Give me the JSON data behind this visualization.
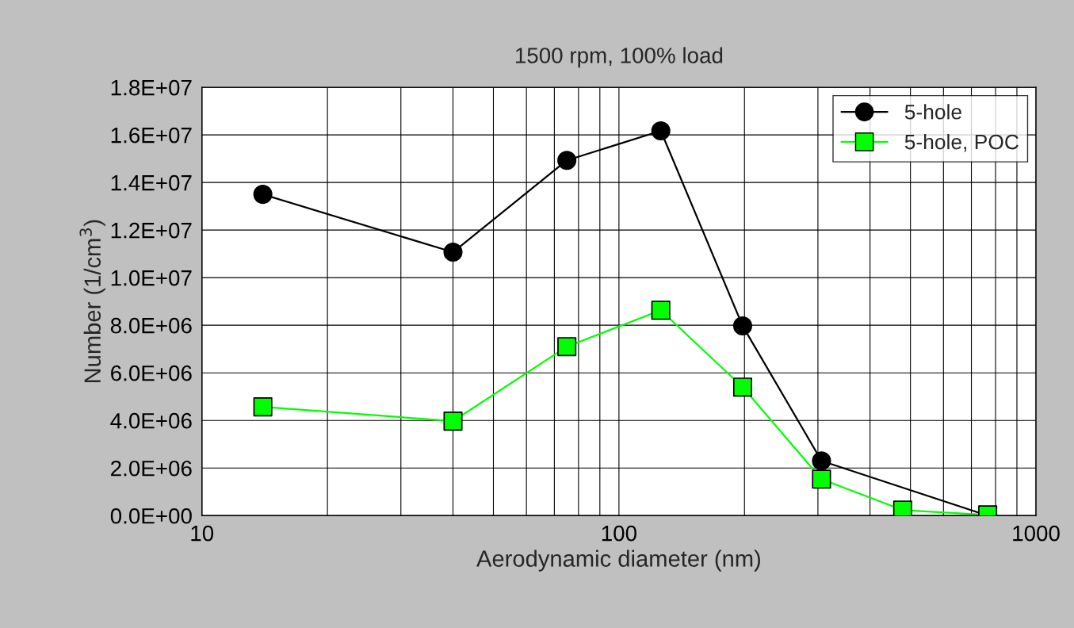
{
  "chart_data": {
    "type": "line",
    "title": "1500 rpm, 100% load",
    "xlabel": "Aerodynamic diameter (nm)",
    "ylabel": "Number (1/cm$^{3}$)",
    "log": "x",
    "xlim": [
      10,
      1000
    ],
    "xticks": [
      10,
      100,
      1000
    ],
    "ylim": [
      0,
      18000000
    ],
    "yticks": [
      {
        "value": 0,
        "label": "0.0E+00"
      },
      {
        "value": 2000000,
        "label": "2.0E+06"
      },
      {
        "value": 4000000,
        "label": "4.0E+06"
      },
      {
        "value": 6000000,
        "label": "6.0E+06"
      },
      {
        "value": 8000000,
        "label": "8.0E+06"
      },
      {
        "value": 10000000,
        "label": "1.0E+07"
      },
      {
        "value": 12000000,
        "label": "1.2E+07"
      },
      {
        "value": 14000000,
        "label": "1.4E+07"
      },
      {
        "value": 16000000,
        "label": "1.6E+07"
      },
      {
        "value": 18000000,
        "label": "1.8E+07"
      }
    ],
    "grid": true,
    "legend": "top right",
    "line_style": "solid",
    "series": [
      {
        "name": "5-hole",
        "color": "#000000",
        "marker": "circle",
        "x": [
          14,
          40,
          75,
          126,
          198,
          306,
          766
        ],
        "values": [
          13500000,
          11070000,
          14930000,
          16170000,
          7970000,
          2300000,
          0
        ]
      },
      {
        "name": "5-hole, POC",
        "color": "#00ff00",
        "marker": "square",
        "x": [
          14,
          40,
          75,
          126,
          198,
          306,
          479,
          766
        ],
        "values": [
          4570000,
          3970000,
          7100000,
          8630000,
          5400000,
          1530000,
          230000,
          30000
        ]
      }
    ]
  }
}
